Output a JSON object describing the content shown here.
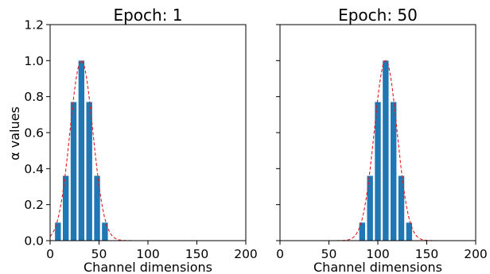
{
  "chart_data": [
    {
      "type": "bar",
      "title": "Epoch: 1",
      "xlabel": "Channel dimensions",
      "ylabel": "α values",
      "xlim": [
        0,
        200
      ],
      "ylim": [
        0,
        1.2
      ],
      "xticks": [
        "0",
        "50",
        "100",
        "150",
        "200"
      ],
      "yticks": [
        "0.0",
        "0.2",
        "0.4",
        "0.6",
        "0.8",
        "1.0",
        "1.2"
      ],
      "bar_color": "#1f77b4",
      "curve_color": "#e31a1c",
      "bars": {
        "x": [
          8,
          16,
          24,
          32,
          40,
          48,
          56
        ],
        "values": [
          0.1,
          0.36,
          0.77,
          1.0,
          0.77,
          0.36,
          0.1
        ]
      },
      "curve": {
        "type": "gaussian",
        "peak": 1.0,
        "center": 32,
        "sigma": 11.7
      }
    },
    {
      "type": "bar",
      "title": "Epoch: 50",
      "xlabel": "Channel dimensions",
      "ylabel": "",
      "xlim": [
        0,
        200
      ],
      "ylim": [
        0,
        1.2
      ],
      "xticks": [
        "0",
        "50",
        "100",
        "150",
        "200"
      ],
      "yticks": [],
      "bar_color": "#1f77b4",
      "curve_color": "#e31a1c",
      "bars": {
        "x": [
          84,
          92,
          100,
          108,
          116,
          124,
          132
        ],
        "values": [
          0.1,
          0.36,
          0.77,
          1.0,
          0.77,
          0.36,
          0.1
        ]
      },
      "curve": {
        "type": "gaussian",
        "peak": 1.0,
        "center": 108,
        "sigma": 11.7
      }
    }
  ]
}
